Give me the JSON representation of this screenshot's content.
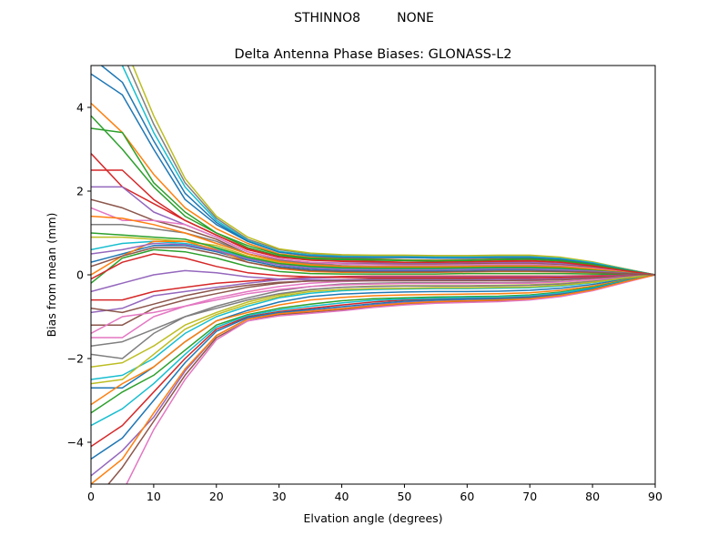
{
  "chart_data": {
    "type": "line",
    "suptitle": "STHINNO8         NONE",
    "title": "Delta Antenna Phase Biases: GLONASS-L2",
    "xlabel": "Elvation angle (degrees)",
    "ylabel": "Bias from mean (mm)",
    "xlim": [
      0,
      90
    ],
    "ylim": [
      -5,
      5
    ],
    "xticks": [
      "0",
      "10",
      "20",
      "30",
      "40",
      "50",
      "60",
      "70",
      "80",
      "90"
    ],
    "yticks": [
      "−4",
      "−2",
      "0",
      "2",
      "4"
    ],
    "grid": false,
    "legend": "none",
    "x": [
      0,
      5,
      10,
      15,
      20,
      25,
      30,
      35,
      40,
      45,
      50,
      55,
      60,
      65,
      70,
      75,
      80,
      85,
      90
    ],
    "series": [
      {
        "values": [
          4.8,
          4.3,
          3.0,
          1.8,
          1.2,
          0.8,
          0.55,
          0.45,
          0.42,
          0.42,
          0.42,
          0.4,
          0.4,
          0.42,
          0.42,
          0.38,
          0.28,
          0.14,
          0
        ]
      },
      {
        "values": [
          4.1,
          3.4,
          2.4,
          1.6,
          1.1,
          0.75,
          0.5,
          0.42,
          0.4,
          0.38,
          0.36,
          0.35,
          0.36,
          0.38,
          0.4,
          0.36,
          0.26,
          0.12,
          0
        ]
      },
      {
        "values": [
          3.5,
          3.4,
          2.2,
          1.5,
          1.0,
          0.65,
          0.45,
          0.38,
          0.36,
          0.35,
          0.34,
          0.33,
          0.34,
          0.36,
          0.37,
          0.33,
          0.24,
          0.11,
          0
        ]
      },
      {
        "values": [
          2.9,
          2.1,
          1.7,
          1.3,
          0.95,
          0.6,
          0.42,
          0.35,
          0.33,
          0.32,
          0.3,
          0.3,
          0.31,
          0.33,
          0.34,
          0.3,
          0.22,
          0.1,
          0
        ]
      },
      {
        "values": [
          2.1,
          2.1,
          1.5,
          1.2,
          0.9,
          0.55,
          0.38,
          0.3,
          0.28,
          0.28,
          0.27,
          0.27,
          0.28,
          0.3,
          0.3,
          0.27,
          0.2,
          0.09,
          0
        ]
      },
      {
        "values": [
          1.8,
          1.6,
          1.3,
          1.1,
          0.85,
          0.5,
          0.35,
          0.28,
          0.26,
          0.25,
          0.25,
          0.25,
          0.26,
          0.27,
          0.27,
          0.24,
          0.18,
          0.08,
          0
        ]
      },
      {
        "values": [
          1.6,
          1.3,
          1.3,
          1.2,
          0.9,
          0.55,
          0.38,
          0.3,
          0.26,
          0.24,
          0.23,
          0.23,
          0.24,
          0.25,
          0.25,
          0.22,
          0.16,
          0.07,
          0
        ]
      },
      {
        "values": [
          1.2,
          1.2,
          1.1,
          1.0,
          0.8,
          0.5,
          0.34,
          0.26,
          0.22,
          0.2,
          0.2,
          0.2,
          0.21,
          0.22,
          0.22,
          0.2,
          0.14,
          0.06,
          0
        ]
      },
      {
        "values": [
          0.9,
          0.9,
          0.85,
          0.8,
          0.7,
          0.45,
          0.3,
          0.22,
          0.18,
          0.17,
          0.17,
          0.17,
          0.18,
          0.19,
          0.19,
          0.17,
          0.12,
          0.05,
          0
        ]
      },
      {
        "values": [
          0.6,
          0.75,
          0.8,
          0.75,
          0.62,
          0.4,
          0.26,
          0.18,
          0.15,
          0.14,
          0.14,
          0.14,
          0.15,
          0.16,
          0.16,
          0.14,
          0.1,
          0.04,
          0
        ]
      },
      {
        "values": [
          0.3,
          0.5,
          0.7,
          0.7,
          0.55,
          0.35,
          0.2,
          0.13,
          0.1,
          0.1,
          0.1,
          0.1,
          0.11,
          0.12,
          0.12,
          0.1,
          0.07,
          0.03,
          0
        ]
      },
      {
        "values": [
          0.0,
          0.45,
          0.8,
          0.8,
          0.6,
          0.3,
          0.15,
          0.08,
          0.06,
          0.06,
          0.06,
          0.06,
          0.07,
          0.08,
          0.08,
          0.07,
          0.05,
          0.02,
          0
        ]
      },
      {
        "values": [
          -0.2,
          0.4,
          0.6,
          0.55,
          0.4,
          0.2,
          0.08,
          0.03,
          0.02,
          0.02,
          0.02,
          0.02,
          0.03,
          0.03,
          0.03,
          0.03,
          0.02,
          0.01,
          0
        ]
      },
      {
        "values": [
          -0.6,
          -0.6,
          -0.4,
          -0.3,
          -0.2,
          -0.15,
          -0.1,
          -0.06,
          -0.04,
          -0.03,
          -0.03,
          -0.03,
          -0.03,
          -0.03,
          -0.03,
          -0.03,
          -0.02,
          -0.01,
          0
        ]
      },
      {
        "values": [
          -0.9,
          -0.8,
          -0.5,
          -0.4,
          -0.3,
          -0.2,
          -0.12,
          -0.08,
          -0.06,
          -0.05,
          -0.05,
          -0.05,
          -0.05,
          -0.05,
          -0.05,
          -0.04,
          -0.03,
          -0.01,
          0
        ]
      },
      {
        "values": [
          -1.2,
          -1.2,
          -0.8,
          -0.6,
          -0.45,
          -0.3,
          -0.2,
          -0.14,
          -0.12,
          -0.1,
          -0.1,
          -0.1,
          -0.1,
          -0.1,
          -0.1,
          -0.09,
          -0.06,
          -0.03,
          0
        ]
      },
      {
        "values": [
          -1.5,
          -1.5,
          -1.0,
          -0.75,
          -0.55,
          -0.4,
          -0.28,
          -0.2,
          -0.16,
          -0.14,
          -0.14,
          -0.14,
          -0.14,
          -0.14,
          -0.14,
          -0.12,
          -0.09,
          -0.04,
          0
        ]
      },
      {
        "values": [
          -1.9,
          -2.0,
          -1.4,
          -1.0,
          -0.75,
          -0.55,
          -0.38,
          -0.28,
          -0.22,
          -0.2,
          -0.19,
          -0.19,
          -0.19,
          -0.19,
          -0.18,
          -0.16,
          -0.12,
          -0.05,
          0
        ]
      },
      {
        "values": [
          -2.2,
          -2.1,
          -1.7,
          -1.2,
          -0.9,
          -0.65,
          -0.48,
          -0.36,
          -0.3,
          -0.27,
          -0.26,
          -0.26,
          -0.26,
          -0.25,
          -0.24,
          -0.21,
          -0.15,
          -0.07,
          0
        ]
      },
      {
        "values": [
          -2.5,
          -2.4,
          -2.0,
          -1.4,
          -1.0,
          -0.75,
          -0.55,
          -0.44,
          -0.38,
          -0.35,
          -0.34,
          -0.33,
          -0.33,
          -0.32,
          -0.31,
          -0.27,
          -0.19,
          -0.09,
          0
        ]
      },
      {
        "values": [
          -2.7,
          -2.7,
          -2.2,
          -1.6,
          -1.1,
          -0.85,
          -0.65,
          -0.52,
          -0.46,
          -0.43,
          -0.41,
          -0.4,
          -0.4,
          -0.39,
          -0.37,
          -0.32,
          -0.23,
          -0.11,
          0
        ]
      },
      {
        "values": [
          -3.1,
          -2.6,
          -2.2,
          -1.6,
          -1.1,
          -0.9,
          -0.72,
          -0.6,
          -0.54,
          -0.5,
          -0.48,
          -0.47,
          -0.46,
          -0.45,
          -0.43,
          -0.37,
          -0.27,
          -0.13,
          0
        ]
      },
      {
        "values": [
          -3.3,
          -2.8,
          -2.4,
          -1.8,
          -1.2,
          -0.95,
          -0.8,
          -0.7,
          -0.62,
          -0.57,
          -0.55,
          -0.53,
          -0.52,
          -0.51,
          -0.48,
          -0.41,
          -0.3,
          -0.14,
          0
        ]
      },
      {
        "values": [
          -4.1,
          -3.6,
          -2.8,
          -2.0,
          -1.3,
          -1.0,
          -0.88,
          -0.8,
          -0.72,
          -0.65,
          -0.6,
          -0.58,
          -0.56,
          -0.55,
          -0.52,
          -0.45,
          -0.33,
          -0.16,
          0
        ]
      },
      {
        "values": [
          -4.8,
          -4.2,
          -3.4,
          -2.3,
          -1.45,
          -1.05,
          -0.92,
          -0.86,
          -0.8,
          -0.72,
          -0.66,
          -0.63,
          -0.61,
          -0.59,
          -0.56,
          -0.48,
          -0.35,
          -0.17,
          0
        ]
      },
      {
        "values": [
          -5.5,
          -4.6,
          -3.5,
          -2.4,
          -1.5,
          -1.1,
          -0.95,
          -0.9,
          -0.84,
          -0.76,
          -0.7,
          -0.66,
          -0.64,
          -0.62,
          -0.58,
          -0.5,
          -0.37,
          -0.18,
          0
        ]
      },
      {
        "values": [
          -6.2,
          -5.2,
          -3.7,
          -2.5,
          -1.55,
          -1.1,
          -0.98,
          -0.92,
          -0.86,
          -0.78,
          -0.72,
          -0.68,
          -0.66,
          -0.64,
          -0.6,
          -0.52,
          -0.38,
          -0.19,
          0
        ]
      },
      {
        "values": [
          6.0,
          5.3,
          3.6,
          2.2,
          1.35,
          0.85,
          0.6,
          0.5,
          0.46,
          0.45,
          0.45,
          0.44,
          0.44,
          0.45,
          0.45,
          0.4,
          0.3,
          0.15,
          0
        ]
      },
      {
        "values": [
          6.5,
          5.6,
          3.8,
          2.3,
          1.4,
          0.9,
          0.62,
          0.52,
          0.48,
          0.47,
          0.47,
          0.46,
          0.46,
          0.47,
          0.47,
          0.42,
          0.31,
          0.15,
          0
        ]
      },
      {
        "values": [
          5.8,
          5.0,
          3.4,
          2.1,
          1.3,
          0.82,
          0.56,
          0.47,
          0.44,
          0.43,
          0.43,
          0.42,
          0.42,
          0.43,
          0.43,
          0.39,
          0.29,
          0.14,
          0
        ]
      },
      {
        "values": [
          5.2,
          4.6,
          3.2,
          1.95,
          1.25,
          0.8,
          0.54,
          0.45,
          0.42,
          0.41,
          0.41,
          0.4,
          0.4,
          0.41,
          0.41,
          0.37,
          0.27,
          0.13,
          0
        ]
      },
      {
        "values": [
          1.4,
          1.35,
          1.2,
          1.0,
          0.75,
          0.5,
          0.32,
          0.24,
          0.2,
          0.19,
          0.19,
          0.19,
          0.2,
          0.21,
          0.21,
          0.19,
          0.14,
          0.06,
          0
        ]
      },
      {
        "values": [
          1.0,
          0.95,
          0.9,
          0.85,
          0.65,
          0.42,
          0.27,
          0.2,
          0.17,
          0.16,
          0.16,
          0.16,
          0.17,
          0.18,
          0.18,
          0.16,
          0.11,
          0.05,
          0
        ]
      },
      {
        "values": [
          -0.1,
          0.3,
          0.5,
          0.4,
          0.2,
          0.05,
          -0.02,
          -0.05,
          -0.06,
          -0.07,
          -0.07,
          -0.07,
          -0.07,
          -0.07,
          -0.07,
          -0.06,
          -0.04,
          -0.02,
          0
        ]
      },
      {
        "values": [
          -0.4,
          -0.2,
          0.0,
          0.1,
          0.05,
          -0.05,
          -0.1,
          -0.12,
          -0.12,
          -0.12,
          -0.12,
          -0.12,
          -0.12,
          -0.11,
          -0.11,
          -0.1,
          -0.07,
          -0.03,
          0
        ]
      },
      {
        "values": [
          -0.8,
          -0.9,
          -0.7,
          -0.5,
          -0.35,
          -0.25,
          -0.18,
          -0.15,
          -0.14,
          -0.14,
          -0.14,
          -0.14,
          -0.14,
          -0.14,
          -0.13,
          -0.12,
          -0.08,
          -0.04,
          0
        ]
      },
      {
        "values": [
          -1.4,
          -1.0,
          -0.9,
          -0.75,
          -0.6,
          -0.45,
          -0.35,
          -0.28,
          -0.24,
          -0.22,
          -0.21,
          -0.21,
          -0.21,
          -0.2,
          -0.2,
          -0.17,
          -0.12,
          -0.06,
          0
        ]
      },
      {
        "values": [
          -1.7,
          -1.6,
          -1.3,
          -1.0,
          -0.8,
          -0.6,
          -0.45,
          -0.35,
          -0.3,
          -0.28,
          -0.27,
          -0.27,
          -0.27,
          -0.26,
          -0.25,
          -0.22,
          -0.16,
          -0.07,
          0
        ]
      },
      {
        "values": [
          -2.6,
          -2.5,
          -1.9,
          -1.3,
          -0.95,
          -0.7,
          -0.52,
          -0.4,
          -0.35,
          -0.33,
          -0.32,
          -0.31,
          -0.31,
          -0.3,
          -0.29,
          -0.25,
          -0.18,
          -0.08,
          0
        ]
      },
      {
        "values": [
          -3.6,
          -3.2,
          -2.6,
          -1.9,
          -1.25,
          -0.97,
          -0.84,
          -0.75,
          -0.67,
          -0.61,
          -0.58,
          -0.56,
          -0.54,
          -0.53,
          -0.5,
          -0.43,
          -0.32,
          -0.15,
          0
        ]
      },
      {
        "values": [
          -4.4,
          -3.9,
          -3.0,
          -2.1,
          -1.35,
          -1.02,
          -0.9,
          -0.83,
          -0.76,
          -0.69,
          -0.63,
          -0.6,
          -0.58,
          -0.57,
          -0.54,
          -0.47,
          -0.34,
          -0.16,
          0
        ]
      },
      {
        "values": [
          -5.0,
          -4.4,
          -3.3,
          -2.25,
          -1.45,
          -1.06,
          -0.93,
          -0.87,
          -0.81,
          -0.74,
          -0.68,
          -0.64,
          -0.62,
          -0.6,
          -0.57,
          -0.49,
          -0.36,
          -0.17,
          0
        ]
      },
      {
        "values": [
          3.8,
          3.0,
          2.1,
          1.4,
          1.0,
          0.7,
          0.48,
          0.4,
          0.38,
          0.37,
          0.35,
          0.34,
          0.35,
          0.37,
          0.38,
          0.34,
          0.25,
          0.12,
          0
        ]
      },
      {
        "values": [
          2.5,
          2.5,
          1.8,
          1.3,
          0.95,
          0.62,
          0.43,
          0.35,
          0.32,
          0.31,
          0.3,
          0.3,
          0.31,
          0.32,
          0.33,
          0.3,
          0.21,
          0.1,
          0
        ]
      },
      {
        "values": [
          0.5,
          0.6,
          0.75,
          0.72,
          0.58,
          0.38,
          0.24,
          0.16,
          0.13,
          0.12,
          0.12,
          0.12,
          0.13,
          0.14,
          0.14,
          0.12,
          0.09,
          0.04,
          0
        ]
      },
      {
        "values": [
          0.2,
          0.45,
          0.65,
          0.65,
          0.5,
          0.3,
          0.17,
          0.1,
          0.08,
          0.07,
          0.07,
          0.07,
          0.08,
          0.09,
          0.09,
          0.08,
          0.06,
          0.03,
          0
        ]
      }
    ],
    "colors": [
      "#1f77b4",
      "#ff7f0e",
      "#2ca02c",
      "#d62728",
      "#9467bd",
      "#8c564b",
      "#e377c2",
      "#7f7f7f",
      "#bcbd22",
      "#17becf"
    ]
  }
}
